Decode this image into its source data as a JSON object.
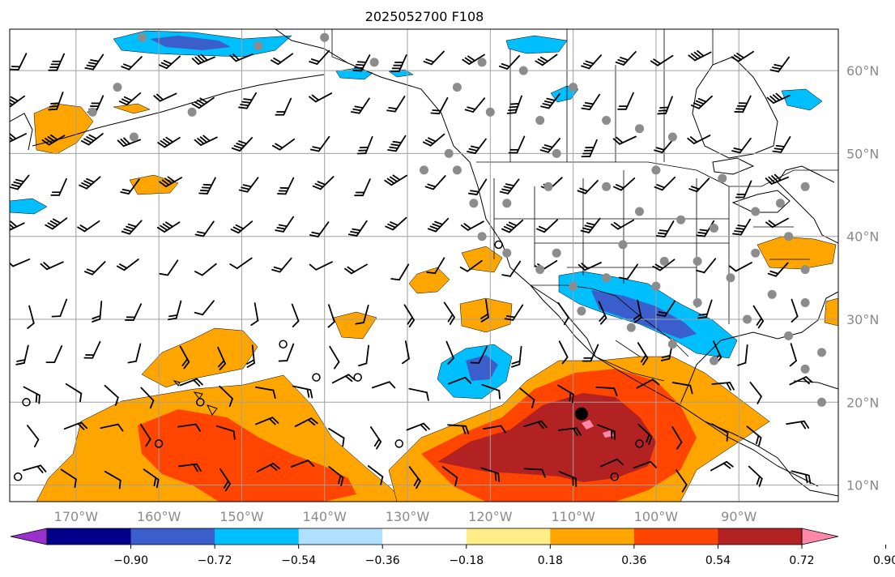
{
  "title": "2025052700 F108",
  "map": {
    "projection": "PlateCarree",
    "lon_range": [
      -178,
      -78
    ],
    "lat_range": [
      8,
      65
    ],
    "lon_ticks": [
      {
        "value": -170,
        "label": "170°W"
      },
      {
        "value": -160,
        "label": "160°W"
      },
      {
        "value": -150,
        "label": "150°W"
      },
      {
        "value": -140,
        "label": "140°W"
      },
      {
        "value": -130,
        "label": "130°W"
      },
      {
        "value": -120,
        "label": "120°W"
      },
      {
        "value": -110,
        "label": "110°W"
      },
      {
        "value": -100,
        "label": "100°W"
      },
      {
        "value": -90,
        "label": "90°W"
      }
    ],
    "lat_ticks": [
      {
        "value": 60,
        "label": "60°N"
      },
      {
        "value": 50,
        "label": "50°N"
      },
      {
        "value": 40,
        "label": "40°N"
      },
      {
        "value": 30,
        "label": "30°N"
      },
      {
        "value": 20,
        "label": "20°N"
      },
      {
        "value": 10,
        "label": "10°N"
      }
    ],
    "grid": true,
    "layers": [
      "filled-anomaly-contours",
      "coastlines",
      "state-borders",
      "wind-barbs",
      "station-markers"
    ]
  },
  "colorbar": {
    "extend": "both",
    "levels": [
      -0.9,
      -0.72,
      -0.54,
      -0.36,
      -0.18,
      0.18,
      0.36,
      0.54,
      0.72,
      0.9
    ],
    "colors": [
      "#9932cc",
      "#00008b",
      "#3a5fcd",
      "#00bfff",
      "#b0e0ff",
      "#ffffff",
      "#ffee88",
      "#ffa500",
      "#ff4500",
      "#b22222",
      "#ff88aa"
    ],
    "tick_labels": [
      "−0.90",
      "−0.72",
      "−0.54",
      "−0.36",
      "−0.18",
      "0.18",
      "0.36",
      "0.54",
      "0.72",
      "0.90"
    ]
  }
}
